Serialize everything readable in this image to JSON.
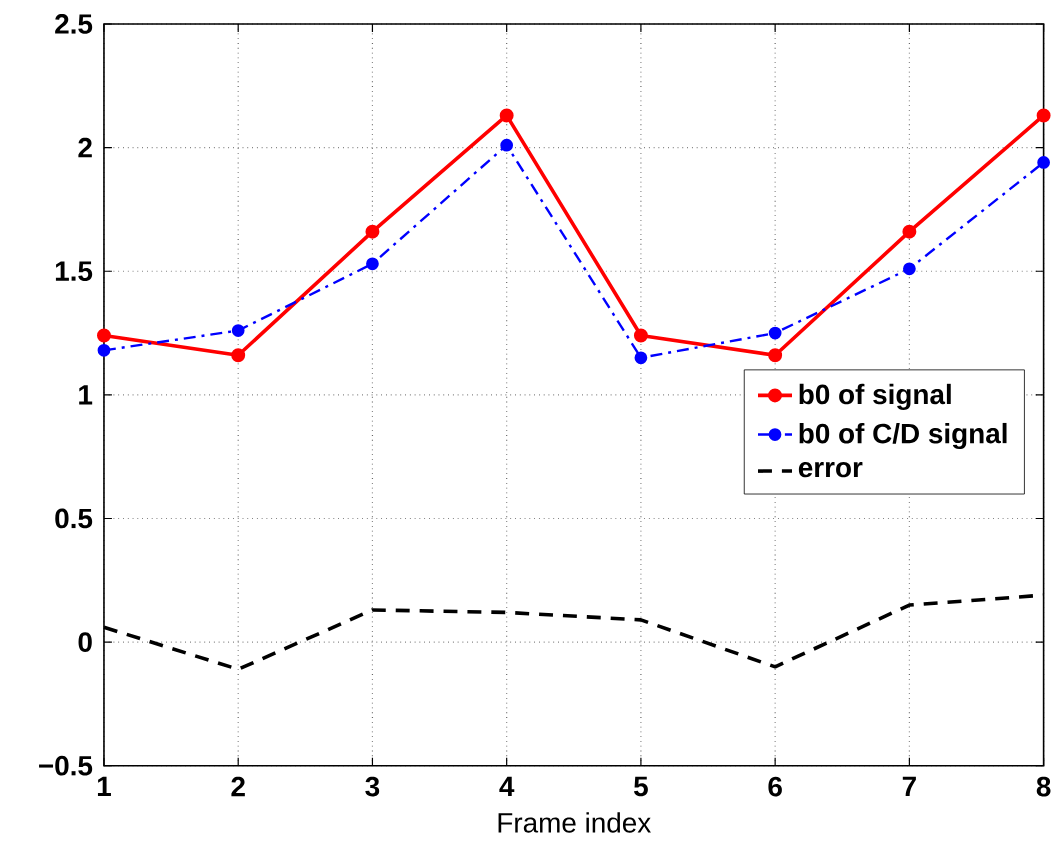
{
  "chart_data": {
    "type": "line",
    "xlabel": "Frame index",
    "x": [
      1,
      2,
      3,
      4,
      5,
      6,
      7,
      8
    ],
    "series": [
      {
        "name": "b0 of signal",
        "color": "#ff0000",
        "marker": "circle",
        "line_style": "solid",
        "values": [
          1.24,
          1.16,
          1.66,
          2.13,
          1.24,
          1.16,
          1.66,
          2.13
        ]
      },
      {
        "name": "b0 of C/D signal",
        "color": "#0000ff",
        "marker": "circle",
        "line_style": "dashdot",
        "values": [
          1.18,
          1.26,
          1.53,
          2.01,
          1.15,
          1.25,
          1.51,
          1.94
        ]
      },
      {
        "name": "error",
        "color": "#000000",
        "marker": "none",
        "line_style": "dashed",
        "values": [
          0.06,
          -0.11,
          0.13,
          0.12,
          0.09,
          -0.1,
          0.15,
          0.19
        ]
      }
    ],
    "xlim": [
      1,
      8
    ],
    "ylim": [
      -0.5,
      2.5
    ],
    "xticks": [
      1,
      2,
      3,
      4,
      5,
      6,
      7,
      8
    ],
    "yticks": [
      {
        "value": -0.5,
        "label": "−0.5"
      },
      0,
      0.5,
      1,
      1.5,
      2,
      2.5
    ],
    "grid": true,
    "legend": "right"
  }
}
